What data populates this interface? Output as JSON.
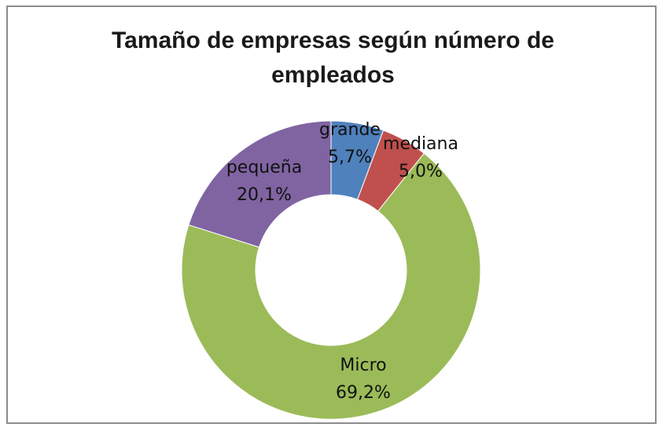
{
  "chart_data": {
    "type": "pie",
    "variant": "doughnut",
    "title_lines": [
      "Tamaño de empresas según número de",
      "empleados"
    ],
    "legend": "none",
    "slices": [
      {
        "name": "grande",
        "value": 5.7,
        "label": "5,7%",
        "color": "#4f81bd"
      },
      {
        "name": "mediana",
        "value": 5.0,
        "label": "5,0%",
        "color": "#c0504d"
      },
      {
        "name": "Micro",
        "value": 69.2,
        "label": "69,2%",
        "color": "#9bbb59"
      },
      {
        "name": "pequeña",
        "value": 20.1,
        "label": "20,1%",
        "color": "#8064a2"
      }
    ]
  }
}
